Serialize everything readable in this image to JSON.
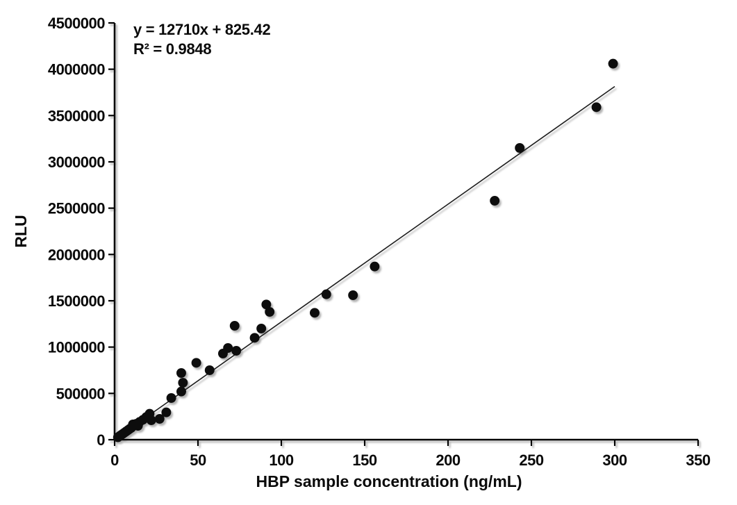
{
  "chart_data": {
    "type": "scatter",
    "title": "",
    "xlabel": "HBP sample concentration (ng/mL)",
    "ylabel": "RLU",
    "annotations": {
      "equation": "y = 12710x + 825.42",
      "r_squared": "R² = 0.9848"
    },
    "xlim": [
      0,
      350
    ],
    "ylim": [
      0,
      4500000
    ],
    "x_ticks": [
      0,
      50,
      100,
      150,
      200,
      250,
      300,
      350
    ],
    "y_ticks": [
      0,
      500000,
      1000000,
      1500000,
      2000000,
      2500000,
      3000000,
      3500000,
      4000000,
      4500000
    ],
    "grid": false,
    "legend": "none",
    "marker_color": "#0d0d0d",
    "line_color": "#1a1a1a",
    "axis_color": "#000000",
    "trendline": {
      "slope": 12710,
      "intercept": 825.42,
      "x_start": 1,
      "x_end": 300
    },
    "points": [
      [
        2,
        26000
      ],
      [
        3,
        39000
      ],
      [
        4,
        52000
      ],
      [
        5,
        64000
      ],
      [
        6,
        77000
      ],
      [
        7,
        90000
      ],
      [
        8,
        103000
      ],
      [
        9,
        116000
      ],
      [
        10,
        128000
      ],
      [
        11,
        165000
      ],
      [
        12,
        153000
      ],
      [
        13,
        172000
      ],
      [
        14,
        150000
      ],
      [
        15,
        192000
      ],
      [
        17,
        215000
      ],
      [
        19,
        245000
      ],
      [
        21,
        280000
      ],
      [
        22,
        210000
      ],
      [
        27,
        225000
      ],
      [
        31,
        295000
      ],
      [
        34,
        450000
      ],
      [
        40,
        520000
      ],
      [
        40,
        720000
      ],
      [
        41,
        615000
      ],
      [
        49,
        830000
      ],
      [
        57,
        750000
      ],
      [
        65,
        930000
      ],
      [
        68,
        990000
      ],
      [
        72,
        1230000
      ],
      [
        73,
        960000
      ],
      [
        84,
        1100000
      ],
      [
        88,
        1200000
      ],
      [
        91,
        1460000
      ],
      [
        93,
        1380000
      ],
      [
        120,
        1370000
      ],
      [
        127,
        1570000
      ],
      [
        143,
        1560000
      ],
      [
        156,
        1870000
      ],
      [
        228,
        2580000
      ],
      [
        243,
        3150000
      ],
      [
        289,
        3590000
      ],
      [
        299,
        4060000
      ]
    ]
  }
}
